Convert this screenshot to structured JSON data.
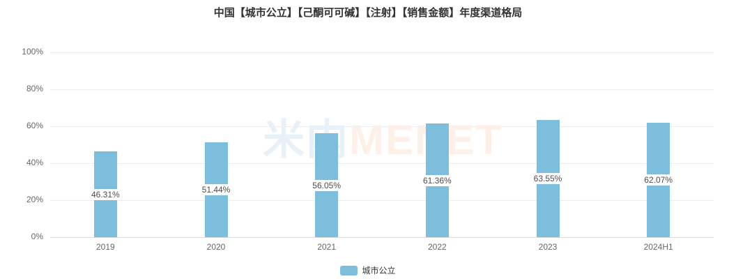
{
  "title": "中国【城市公立】【己酮可可碱】【注射】【销售金额】年度渠道格局",
  "watermark": {
    "cn": "米内",
    "en": "MENET"
  },
  "legend": {
    "items": [
      {
        "label": "城市公立",
        "color": "#7dbedd"
      }
    ]
  },
  "colors": {
    "bar": "#7dbedd",
    "gridline": "#ececec",
    "axis_line": "#dcdcdc",
    "title_text": "#333333",
    "axis_text": "#666666",
    "value_label_text": "#4d4d4d",
    "value_label_bg": "#ffffff",
    "watermark_cn": "#e7f1f7",
    "watermark_en": "#fdf0e9"
  },
  "chart_data": {
    "type": "bar",
    "title": "中国【城市公立】【己酮可可碱】【注射】【销售金额】年度渠道格局",
    "categories": [
      "2019",
      "2020",
      "2021",
      "2022",
      "2023",
      "2024H1"
    ],
    "series": [
      {
        "name": "城市公立",
        "values": [
          46.31,
          51.44,
          56.05,
          61.36,
          63.55,
          62.07
        ]
      }
    ],
    "value_labels": [
      "46.31%",
      "51.44%",
      "56.05%",
      "61.36%",
      "63.55%",
      "62.07%"
    ],
    "xlabel": "",
    "ylabel": "",
    "ylim": [
      0,
      100
    ],
    "y_ticks": [
      "0%",
      "20%",
      "40%",
      "60%",
      "80%",
      "100%"
    ],
    "grid": true,
    "legend_position": "bottom",
    "bar_color": "#7dbedd",
    "value_label_position": "inside-middle"
  }
}
